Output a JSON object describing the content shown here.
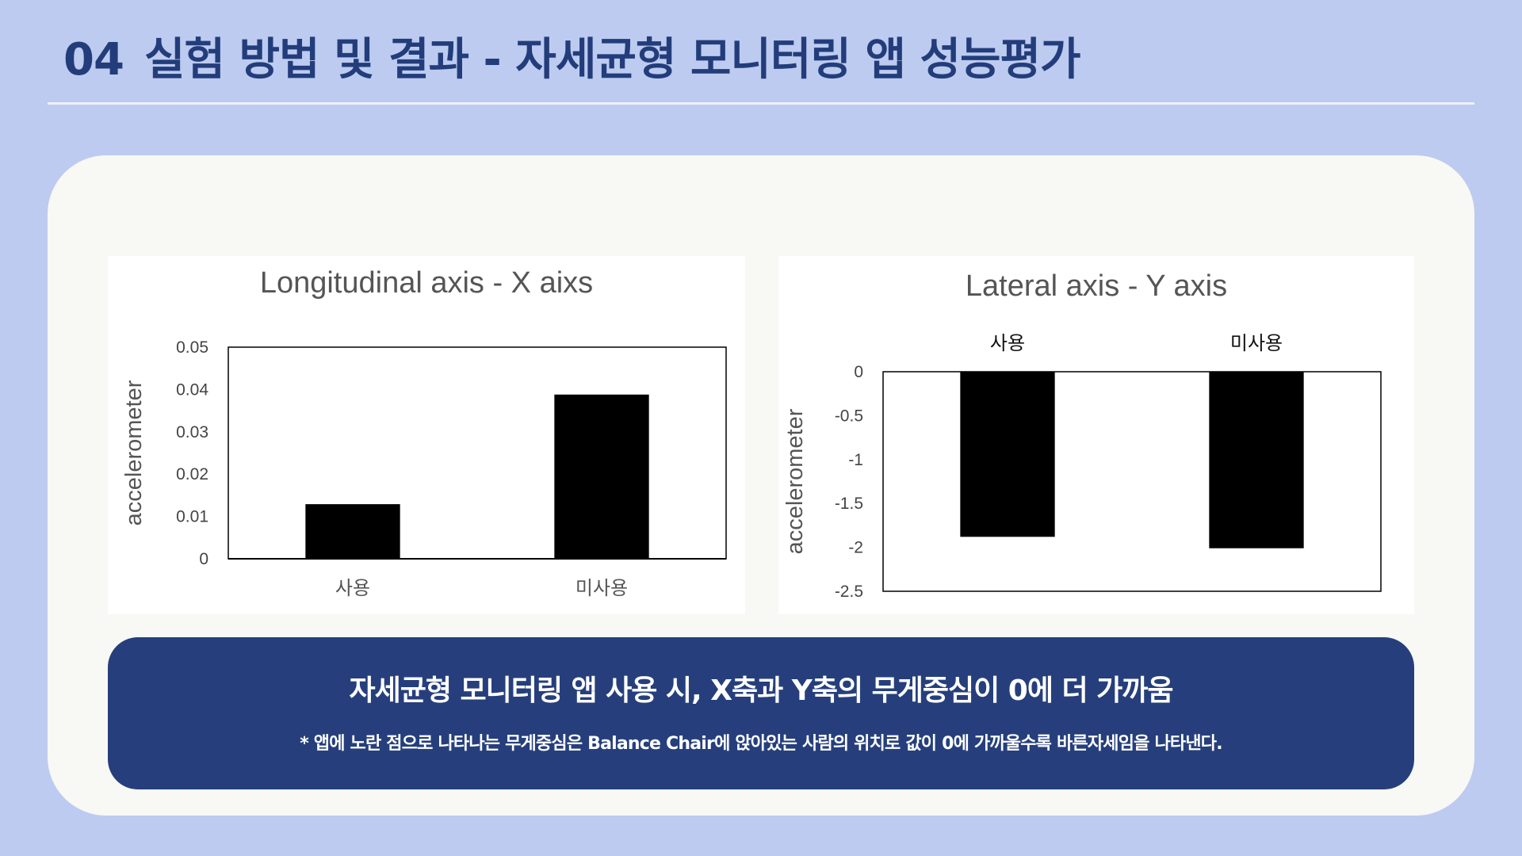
{
  "header": {
    "number": "04",
    "title": "실험 방법 및 결과 - 자세균형 모니터링 앱 성능평가"
  },
  "colors": {
    "background": "#bdcbf0",
    "title": "#233d7b",
    "summary_box": "#263f7c",
    "bar": "#000000"
  },
  "chart_data": [
    {
      "type": "bar",
      "title": "Longitudinal axis - X aixs",
      "ylabel": "accelerometer",
      "categories": [
        "사용",
        "미사용"
      ],
      "values": [
        0.0129,
        0.0388
      ],
      "ylim": [
        0,
        0.05
      ],
      "yticks": [
        "0",
        "0.01",
        "0.02",
        "0.03",
        "0.04",
        "0.05"
      ],
      "ytick_values": [
        0,
        0.01,
        0.02,
        0.03,
        0.04,
        0.05
      ],
      "category_axis": "bottom",
      "grid": false
    },
    {
      "type": "bar",
      "title": "Lateral axis - Y axis",
      "ylabel": "accelerometer",
      "categories": [
        "사용",
        "미사용"
      ],
      "values": [
        -1.88,
        -2.01
      ],
      "ylim": [
        -2.5,
        0
      ],
      "yticks": [
        "0",
        "-0.5",
        "-1",
        "-1.5",
        "-2",
        "-2.5"
      ],
      "ytick_values": [
        0,
        -0.5,
        -1,
        -1.5,
        -2,
        -2.5
      ],
      "category_axis": "top",
      "grid": false
    }
  ],
  "summary": {
    "main": "자세균형 모니터링 앱 사용 시,  X축과 Y축의 무게중심이 0에 더 가까움",
    "note": "* 앱에 노란 점으로 나타나는 무게중심은 Balance Chair에 앉아있는 사람의 위치로 값이 0에 가까울수록 바른자세임을 나타낸다."
  }
}
